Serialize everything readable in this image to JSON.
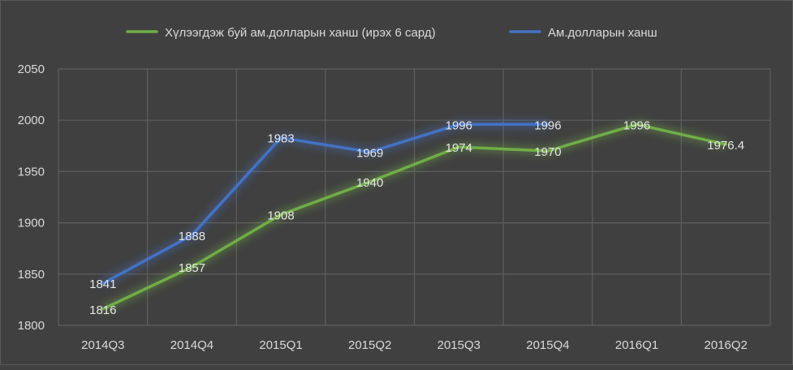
{
  "chart_data": {
    "type": "line",
    "categories": [
      "2014Q3",
      "2014Q4",
      "2015Q1",
      "2015Q2",
      "2015Q3",
      "2015Q4",
      "2016Q1",
      "2016Q2"
    ],
    "series": [
      {
        "name": "Хүлээгдэж буй ам.долларын ханш (ирэх 6 сард)",
        "color": "#70ad47",
        "values": [
          1816,
          1857,
          1908,
          1940,
          1974,
          1970,
          1996,
          1976.4
        ],
        "labels": [
          "1816",
          "1857",
          "1908",
          "1940",
          "1974",
          "1970",
          "1996",
          "1976.4"
        ]
      },
      {
        "name": "Ам.долларын ханш",
        "color": "#4472c4",
        "values": [
          1841,
          1888,
          1983,
          1969,
          1996,
          1996,
          null,
          null
        ],
        "labels": [
          "1841",
          "1888",
          "1983",
          "1969",
          "1996",
          "1996",
          null,
          null
        ]
      }
    ],
    "ylim": [
      1800,
      2050
    ],
    "yticks": [
      "1800",
      "1850",
      "1900",
      "1950",
      "2000",
      "2050"
    ],
    "grid": true,
    "legend_position": "top"
  }
}
